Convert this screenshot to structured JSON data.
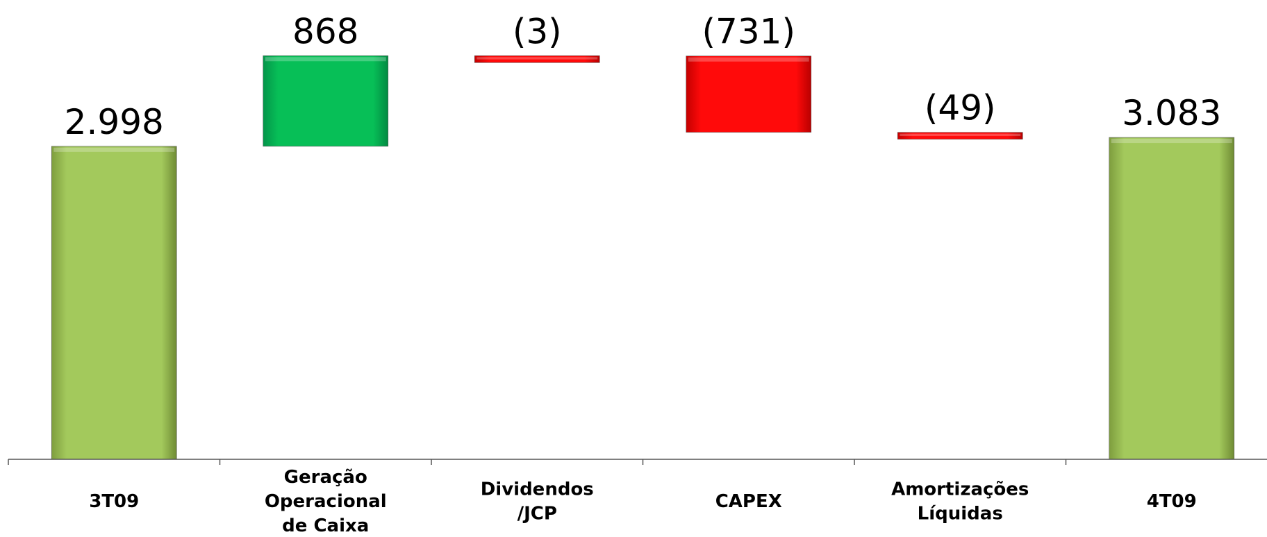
{
  "chart_data": {
    "type": "waterfall",
    "categories": [
      "3T09",
      "Geração Operacional de Caixa",
      "Dividendos /JCP",
      "CAPEX",
      "Amortizações Líquidas",
      "4T09"
    ],
    "category_label_lines": [
      [
        "3T09"
      ],
      [
        "Geração",
        "Operacional",
        "de Caixa"
      ],
      [
        "Dividendos",
        "/JCP"
      ],
      [
        "CAPEX"
      ],
      [
        "Amortizações",
        "Líquidas"
      ],
      [
        "4T09"
      ]
    ],
    "values": [
      2998,
      868,
      -3,
      -731,
      -49,
      3083
    ],
    "bar_kind": [
      "total",
      "increase",
      "decrease",
      "decrease",
      "decrease",
      "total"
    ],
    "data_labels": [
      "2.998",
      "868",
      "(3)",
      "(731)",
      "(49)",
      "3.083"
    ],
    "colors": {
      "total": "#a3c95c",
      "increase": "#07bf57",
      "decrease": "#ff0000"
    },
    "title": "",
    "xlabel": "",
    "ylabel": "",
    "ylim": [
      0,
      4200
    ],
    "grid": false,
    "legend": "none"
  }
}
